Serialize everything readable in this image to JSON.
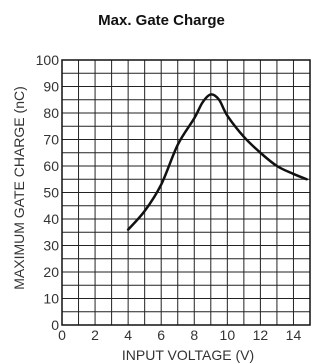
{
  "chart_data": {
    "type": "line",
    "title": "Max. Gate Charge",
    "xlabel": "INPUT VOLTAGE (V)",
    "ylabel": "MAXIMUM GATE CHARGE (nC)",
    "xlim": [
      0,
      15
    ],
    "ylim": [
      0,
      100
    ],
    "x_ticks": [
      0,
      2,
      4,
      6,
      8,
      10,
      12,
      14
    ],
    "y_ticks": [
      0,
      10,
      20,
      30,
      40,
      50,
      60,
      70,
      80,
      90,
      100
    ],
    "x_grid_step": 1,
    "y_grid_step": 5,
    "grid": true,
    "colors": {
      "line": "#111111",
      "grid": "#222222"
    },
    "series": [
      {
        "x": [
          4.0,
          5.0,
          6.0,
          7.0,
          8.0,
          8.5,
          9.0,
          9.5,
          10.0,
          11.0,
          12.0,
          13.0,
          14.0,
          14.8
        ],
        "y": [
          36,
          43,
          53,
          68,
          78,
          84,
          87,
          85,
          79,
          71,
          65,
          60,
          57,
          55
        ]
      }
    ]
  }
}
